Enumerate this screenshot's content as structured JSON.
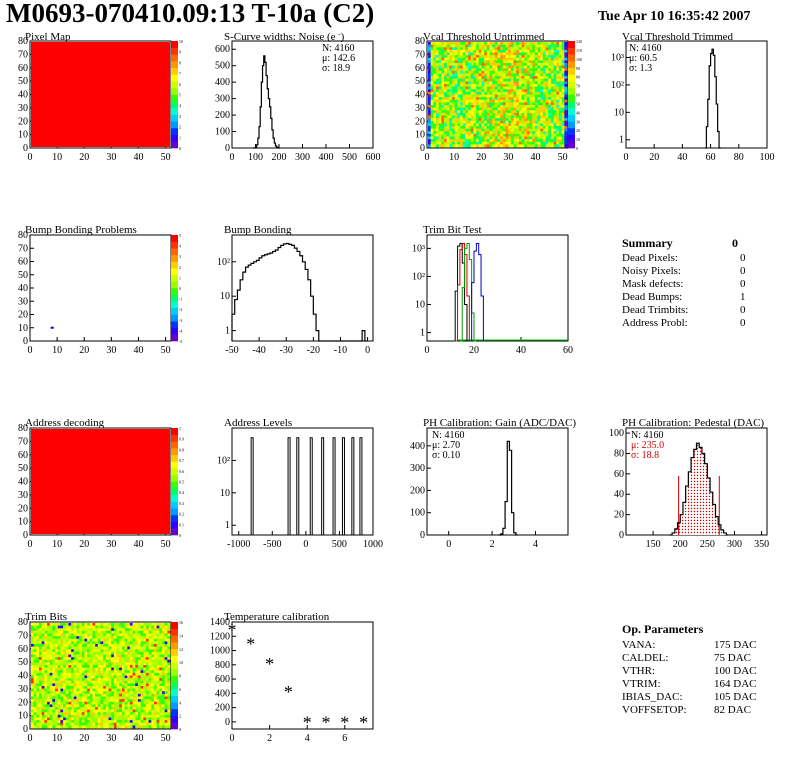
{
  "page": {
    "title": "M0693-070410.09:13 T-10a (C2)",
    "date": "Tue Apr 10 16:35:42 2007"
  },
  "chart_data": [
    {
      "type": "heatmap",
      "title": "Pixel Map",
      "xlim": [
        0,
        52
      ],
      "ylim": [
        0,
        80
      ],
      "x_ticks": [
        0,
        10,
        20,
        30,
        40,
        50
      ],
      "y_ticks": [
        0,
        10,
        20,
        30,
        40,
        50,
        60,
        70,
        80
      ],
      "z_ticks": [
        0,
        1,
        2,
        3,
        4,
        5,
        6,
        7,
        8,
        9,
        10
      ],
      "fill": "uniform",
      "value": 10
    },
    {
      "type": "histogram",
      "title": "S-Curve widths: Noise (e )",
      "title_sup": "-",
      "xlim": [
        0,
        600
      ],
      "ylim": [
        0,
        650
      ],
      "x_ticks": [
        0,
        100,
        200,
        300,
        400,
        500,
        600
      ],
      "y_ticks": [
        0,
        100,
        200,
        300,
        400,
        500,
        600
      ],
      "stats": [
        "N: 4160",
        "μ: 142.6",
        "σ: 18.9"
      ],
      "bins": [
        [
          90,
          0
        ],
        [
          100,
          5
        ],
        [
          105,
          20
        ],
        [
          110,
          60
        ],
        [
          115,
          130
        ],
        [
          120,
          250
        ],
        [
          125,
          400
        ],
        [
          130,
          500
        ],
        [
          135,
          560
        ],
        [
          140,
          520
        ],
        [
          145,
          440
        ],
        [
          150,
          360
        ],
        [
          155,
          300
        ],
        [
          160,
          250
        ],
        [
          165,
          180
        ],
        [
          170,
          110
        ],
        [
          175,
          60
        ],
        [
          180,
          30
        ],
        [
          185,
          12
        ],
        [
          190,
          5
        ],
        [
          195,
          0
        ]
      ]
    },
    {
      "type": "heatmap",
      "title": "Vcal Threshold Untrimmed",
      "xlim": [
        0,
        52
      ],
      "ylim": [
        0,
        80
      ],
      "x_ticks": [
        0,
        10,
        20,
        30,
        40,
        50
      ],
      "y_ticks": [
        0,
        10,
        20,
        30,
        40,
        50,
        60,
        70,
        80
      ],
      "z_ticks": [
        0,
        10,
        20,
        30,
        40,
        50,
        60,
        70,
        80,
        90,
        100,
        110,
        120
      ],
      "fill": "noise"
    },
    {
      "type": "histogram",
      "title": "Vcal Threshold Trimmed",
      "xlim": [
        0,
        100
      ],
      "ylim_log": [
        0.5,
        4000
      ],
      "x_ticks": [
        0,
        20,
        40,
        60,
        80,
        100
      ],
      "y_ticks": [
        1,
        10,
        100,
        1000
      ],
      "y_tick_labels": [
        "1",
        "10",
        "10²",
        "10³"
      ],
      "stats": [
        "N: 4160",
        "μ: 60.5",
        "σ:  1.3"
      ],
      "bins": [
        [
          56,
          0.5
        ],
        [
          57,
          3
        ],
        [
          58,
          30
        ],
        [
          59,
          500
        ],
        [
          60,
          1400
        ],
        [
          61,
          2000
        ],
        [
          62,
          1200
        ],
        [
          63,
          200
        ],
        [
          64,
          20
        ],
        [
          65,
          2
        ],
        [
          66,
          0.5
        ]
      ]
    },
    {
      "type": "heatmap",
      "title": "Bump Bonding Problems",
      "xlim": [
        0,
        52
      ],
      "ylim": [
        0,
        80
      ],
      "x_ticks": [
        0,
        10,
        20,
        30,
        40,
        50
      ],
      "y_ticks": [
        0,
        10,
        20,
        30,
        40,
        50,
        60,
        70,
        80
      ],
      "z_ticks": [
        -5,
        -4,
        -3,
        -2,
        -1,
        0,
        1,
        2,
        3,
        4,
        5
      ],
      "fill": "empty",
      "points": [
        [
          8,
          10
        ]
      ]
    },
    {
      "type": "histogram",
      "title": "Bump Bonding",
      "xlim": [
        -50,
        2
      ],
      "ylim_log": [
        0.5,
        600
      ],
      "x_ticks": [
        -50,
        -40,
        -30,
        -20,
        -10,
        0
      ],
      "y_ticks": [
        1,
        10,
        100
      ],
      "y_tick_labels": [
        "1",
        "10",
        "10²"
      ],
      "bins": [
        [
          -50,
          3
        ],
        [
          -49,
          8
        ],
        [
          -48,
          15
        ],
        [
          -47,
          30
        ],
        [
          -46,
          50
        ],
        [
          -45,
          70
        ],
        [
          -44,
          80
        ],
        [
          -43,
          90
        ],
        [
          -42,
          100
        ],
        [
          -41,
          110
        ],
        [
          -40,
          130
        ],
        [
          -39,
          150
        ],
        [
          -38,
          160
        ],
        [
          -37,
          170
        ],
        [
          -36,
          180
        ],
        [
          -35,
          200
        ],
        [
          -34,
          220
        ],
        [
          -33,
          260
        ],
        [
          -32,
          300
        ],
        [
          -31,
          330
        ],
        [
          -30,
          340
        ],
        [
          -29,
          320
        ],
        [
          -28,
          300
        ],
        [
          -27,
          250
        ],
        [
          -26,
          200
        ],
        [
          -25,
          150
        ],
        [
          -24,
          100
        ],
        [
          -23,
          60
        ],
        [
          -22,
          30
        ],
        [
          -21,
          10
        ],
        [
          -20,
          3
        ],
        [
          -19,
          1
        ],
        [
          -18,
          0.5
        ],
        [
          -3,
          0.5
        ],
        [
          -2,
          1
        ],
        [
          -1,
          0.5
        ]
      ]
    },
    {
      "type": "histogram",
      "title": "Trim Bit Test",
      "xlim": [
        0,
        60
      ],
      "ylim_log": [
        0.5,
        3000
      ],
      "x_ticks": [
        0,
        20,
        40,
        60
      ],
      "y_ticks": [
        1,
        10,
        100,
        1000
      ],
      "y_tick_labels": [
        "1",
        "10",
        "10²",
        "10³"
      ],
      "series": [
        {
          "color": "#000000",
          "bins": [
            [
              11,
              0.5
            ],
            [
              12,
              30
            ],
            [
              13,
              1200
            ],
            [
              14,
              1500
            ],
            [
              15,
              300
            ],
            [
              16,
              10
            ],
            [
              17,
              0.5
            ]
          ]
        },
        {
          "color": "#cc0000",
          "bins": [
            [
              12,
              0.5
            ],
            [
              13,
              50
            ],
            [
              14,
              900
            ],
            [
              15,
              1500
            ],
            [
              16,
              600
            ],
            [
              17,
              20
            ],
            [
              18,
              0.5
            ]
          ]
        },
        {
          "color": "#009900",
          "bins": [
            [
              14,
              0.5
            ],
            [
              15,
              40
            ],
            [
              16,
              1000
            ],
            [
              17,
              1500
            ],
            [
              18,
              400
            ],
            [
              19,
              5
            ],
            [
              20,
              0.5
            ]
          ]
        },
        {
          "color": "#0000cc",
          "bins": [
            [
              18,
              0.5
            ],
            [
              19,
              60
            ],
            [
              20,
              800
            ],
            [
              21,
              1500
            ],
            [
              22,
              600
            ],
            [
              23,
              20
            ],
            [
              24,
              0.5
            ]
          ]
        }
      ],
      "baseline_color": "#00cc00"
    },
    {
      "type": "table",
      "title": "Summary",
      "value": "0",
      "rows": [
        {
          "label": "Dead Pixels:",
          "value": "0"
        },
        {
          "label": "Noisy Pixels:",
          "value": "0"
        },
        {
          "label": "Mask defects:",
          "value": "0"
        },
        {
          "label": "Dead Bumps:",
          "value": "1"
        },
        {
          "label": "Dead Trimbits:",
          "value": "0"
        },
        {
          "label": "Address Probl:",
          "value": "0"
        }
      ]
    },
    {
      "type": "heatmap",
      "title": "Address decoding",
      "xlim": [
        0,
        52
      ],
      "ylim": [
        0,
        80
      ],
      "x_ticks": [
        0,
        10,
        20,
        30,
        40,
        50
      ],
      "y_ticks": [
        0,
        10,
        20,
        30,
        40,
        50,
        60,
        70,
        80
      ],
      "z_ticks": [
        0,
        0.1,
        0.2,
        0.3,
        0.4,
        0.5,
        0.6,
        0.7,
        0.8,
        0.9,
        1
      ],
      "fill": "uniform",
      "value": 1
    },
    {
      "type": "histogram",
      "title": "Address Levels",
      "xlim": [
        -1100,
        1000
      ],
      "ylim_log": [
        0.5,
        1000
      ],
      "x_ticks": [
        -1000,
        -500,
        0,
        500,
        1000
      ],
      "y_ticks": [
        1,
        10,
        100
      ],
      "y_tick_labels": [
        "1",
        "10",
        "10²"
      ],
      "spikes": [
        -800,
        -250,
        -120,
        80,
        250,
        420,
        560,
        700,
        820
      ],
      "spike_height": 500
    },
    {
      "type": "histogram",
      "title": "PH Calibration: Gain (ADC/DAC)",
      "xlim": [
        -1,
        5.5
      ],
      "ylim": [
        0,
        480
      ],
      "x_ticks": [
        0,
        2,
        4
      ],
      "y_ticks": [
        0,
        100,
        200,
        300,
        400
      ],
      "stats": [
        "N: 4160",
        "μ: 2.70",
        "σ: 0.10"
      ],
      "bins": [
        [
          2.3,
          0
        ],
        [
          2.4,
          5
        ],
        [
          2.5,
          30
        ],
        [
          2.6,
          150
        ],
        [
          2.7,
          420
        ],
        [
          2.8,
          380
        ],
        [
          2.9,
          100
        ],
        [
          3.0,
          10
        ],
        [
          3.1,
          0
        ]
      ]
    },
    {
      "type": "histogram",
      "title": "PH Calibration: Pedestal (DAC)",
      "xlim": [
        100,
        360
      ],
      "ylim": [
        0,
        105
      ],
      "x_ticks": [
        150,
        200,
        250,
        300,
        350
      ],
      "y_ticks": [
        0,
        20,
        40,
        60,
        80,
        100
      ],
      "stats": [
        "N: 4160",
        "μ: 235.0",
        "σ: 18.8"
      ],
      "stats_colors": [
        "#000",
        "#cc0000",
        "#cc0000"
      ],
      "fit_lines": [
        197,
        272
      ],
      "bins": [
        [
          180,
          0
        ],
        [
          185,
          2
        ],
        [
          190,
          6
        ],
        [
          195,
          12
        ],
        [
          200,
          20
        ],
        [
          205,
          32
        ],
        [
          210,
          48
        ],
        [
          215,
          62
        ],
        [
          220,
          76
        ],
        [
          225,
          84
        ],
        [
          230,
          90
        ],
        [
          235,
          86
        ],
        [
          240,
          80
        ],
        [
          245,
          70
        ],
        [
          250,
          56
        ],
        [
          255,
          42
        ],
        [
          260,
          30
        ],
        [
          265,
          18
        ],
        [
          270,
          10
        ],
        [
          275,
          5
        ],
        [
          280,
          2
        ],
        [
          285,
          0
        ]
      ]
    },
    {
      "type": "heatmap",
      "title": "Trim Bits",
      "xlim": [
        0,
        52
      ],
      "ylim": [
        0,
        80
      ],
      "x_ticks": [
        0,
        10,
        20,
        30,
        40,
        50
      ],
      "y_ticks": [
        0,
        10,
        20,
        30,
        40,
        50,
        60,
        70,
        80
      ],
      "z_ticks": [
        0,
        2,
        4,
        6,
        8,
        10,
        12,
        14,
        16
      ],
      "fill": "noise2"
    },
    {
      "type": "scatter",
      "title": "Temperature calibration",
      "xlim": [
        0,
        7.5
      ],
      "ylim": [
        -100,
        1400
      ],
      "x_ticks": [
        0,
        2,
        4,
        6
      ],
      "y_ticks": [
        0,
        200,
        400,
        600,
        800,
        1000,
        1200,
        1400
      ],
      "x": [
        0,
        1,
        2,
        3,
        4,
        5,
        6,
        7
      ],
      "y": [
        1290,
        1090,
        810,
        420,
        -10,
        -10,
        -10,
        -10
      ],
      "marker": "*"
    },
    {
      "type": "table",
      "title": "Op. Parameters",
      "rows": [
        {
          "label": "VANA:",
          "value": "175 DAC"
        },
        {
          "label": "CALDEL:",
          "value": "75 DAC"
        },
        {
          "label": "VTHR:",
          "value": "100 DAC"
        },
        {
          "label": "VTRIM:",
          "value": "164 DAC"
        },
        {
          "label": "IBIAS_DAC:",
          "value": "105 DAC"
        },
        {
          "label": "VOFFSETOP:",
          "value": "82 DAC"
        }
      ]
    }
  ]
}
